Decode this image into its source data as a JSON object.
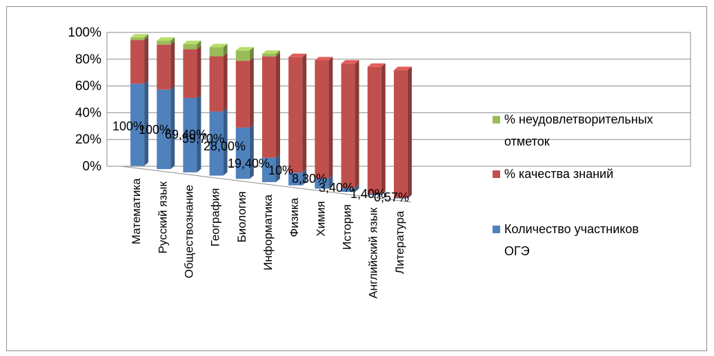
{
  "chart_data": {
    "type": "bar",
    "stacked": true,
    "percent_stacked": true,
    "three_d": true,
    "categories": [
      "Математика",
      "Русский язык",
      "Обществознание",
      "География",
      "Биология",
      "Информатика",
      "Физика",
      "Химия",
      "История",
      "Английский язык",
      "Литература"
    ],
    "series": [
      {
        "name": "Количество участников ОГЭ",
        "color": "#4f81bd",
        "values": [
          64,
          62,
          58,
          50,
          40,
          19,
          10,
          8,
          3,
          1,
          0.5
        ],
        "data_labels": [
          "100%",
          "100%",
          "69,40%",
          "59,70%",
          "28,00%",
          "19,40%",
          "10%",
          "8,30%",
          "3,40%",
          "1,40%",
          "0,57%"
        ]
      },
      {
        "name": "% качества знаний",
        "color": "#c0504d",
        "values": [
          34,
          35,
          38,
          43,
          52,
          79,
          90,
          92,
          97,
          99,
          99.5
        ]
      },
      {
        "name": "% неудовлетворительных отметок",
        "color": "#9bbb59",
        "values": [
          2,
          3,
          4,
          7,
          8,
          2,
          0,
          0,
          0,
          0,
          0
        ]
      }
    ],
    "y_ticks": [
      "0%",
      "20%",
      "40%",
      "60%",
      "80%",
      "100%"
    ],
    "ylim": [
      0,
      100
    ],
    "grid": true,
    "legend_position": "right",
    "legend": [
      {
        "lines": [
          "% неудовлетворительных",
          "отметок"
        ],
        "color": "#9bbb59"
      },
      {
        "lines": [
          "% качества знаний"
        ],
        "color": "#c0504d"
      },
      {
        "lines": [
          "Количество участников",
          "ОГЭ"
        ],
        "color": "#4f81bd"
      }
    ]
  }
}
